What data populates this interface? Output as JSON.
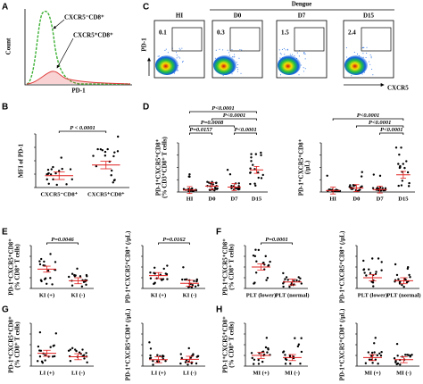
{
  "panels": {
    "A": {
      "label": "A",
      "y_axis": "Count",
      "x_axis": "PD-1",
      "series": [
        "CXCR5⁻CD8⁺",
        "CXCR5⁺CD8⁺"
      ]
    },
    "C": {
      "label": "C",
      "group": "Dengue",
      "y_axis": "PD-1",
      "x_axis": "CXCR5",
      "plots": [
        {
          "name": "HI",
          "gate": 0.1
        },
        {
          "name": "D0",
          "gate": 0.3
        },
        {
          "name": "D7",
          "gate": 1.5
        },
        {
          "name": "D15",
          "gate": 2.4
        }
      ]
    },
    "B": {
      "label": "B",
      "y_axis": [
        "MFI of PD-1"
      ],
      "categories": [
        "CXCR5⁻CD8⁺",
        "CXCR5⁺CD8⁺"
      ],
      "p_values": [
        "P < 0.0001"
      ]
    },
    "D": {
      "label": "D",
      "plots": [
        {
          "y_axis": [
            "PD-1⁺CXCR5⁺CD8⁺",
            "(% CD3⁺CD8⁺ T cells)"
          ],
          "categories": [
            "HI",
            "D0",
            "D7",
            "D15"
          ],
          "p_values": [
            "P<0.0001",
            "P<0.0001",
            "P=0.0008",
            "P<0.0001",
            "P=0.0157"
          ]
        },
        {
          "y_axis": [
            "PD-1⁺CXCR5⁺CD8⁺",
            "(/µL)"
          ],
          "categories": [
            "HI",
            "D0",
            "D7",
            "D15"
          ],
          "p_values": [
            "P<0.0001",
            "P<0.0001",
            "P<0.0001"
          ]
        }
      ]
    },
    "E": {
      "label": "E",
      "plots": [
        {
          "y_axis": [
            "PD-1⁺CXCR5⁺CD8⁺",
            "(% CD8⁺ T cells)"
          ],
          "categories": [
            "KI (+)",
            "KI (-)"
          ],
          "p_values": [
            "P=0.0046"
          ]
        },
        {
          "y_axis": [
            "PD-1⁺CXCR5⁺CD8⁺ (/µL)"
          ],
          "categories": [
            "KI (+)",
            "KI (-)"
          ],
          "p_values": [
            "P=0.0162"
          ]
        }
      ]
    },
    "F": {
      "label": "F",
      "plots": [
        {
          "y_axis": [
            "PD-1⁺CXCR5⁺CD8⁺",
            "(% CD8⁺ T cells)"
          ],
          "categories": [
            "PLT (lower)",
            "PLT (normal)"
          ],
          "p_values": [
            "P=0.0001"
          ]
        },
        {
          "y_axis": [
            "PD-1⁺CXCR5⁺CD8⁺ (/µL)"
          ],
          "categories": [
            "PLT (lower)",
            "PLT (normal)"
          ],
          "p_values": []
        }
      ]
    },
    "G": {
      "label": "G",
      "plots": [
        {
          "y_axis": [
            "PD-1⁺CXCR5⁺CD8⁺",
            "(% CD8⁺ T cells)"
          ],
          "categories": [
            "LI (+)",
            "LI (-)"
          ],
          "p_values": []
        },
        {
          "y_axis": [
            "PD-1⁺CXCR5⁺CD8⁺ (/µL)"
          ],
          "categories": [
            "LI (+)",
            "LI (-)"
          ],
          "p_values": []
        }
      ]
    },
    "H": {
      "label": "H",
      "plots": [
        {
          "y_axis": [
            "PD-1⁺CXCR5⁺CD8⁺",
            "(% CD8⁺ T cells)"
          ],
          "categories": [
            "MI (+)",
            "MI (-)"
          ],
          "p_values": []
        },
        {
          "y_axis": [
            "PD-1⁺CXCR5⁺CD8⁺ (/µL)"
          ],
          "categories": [
            "MI (+)",
            "MI (-)"
          ],
          "p_values": []
        }
      ]
    }
  }
}
